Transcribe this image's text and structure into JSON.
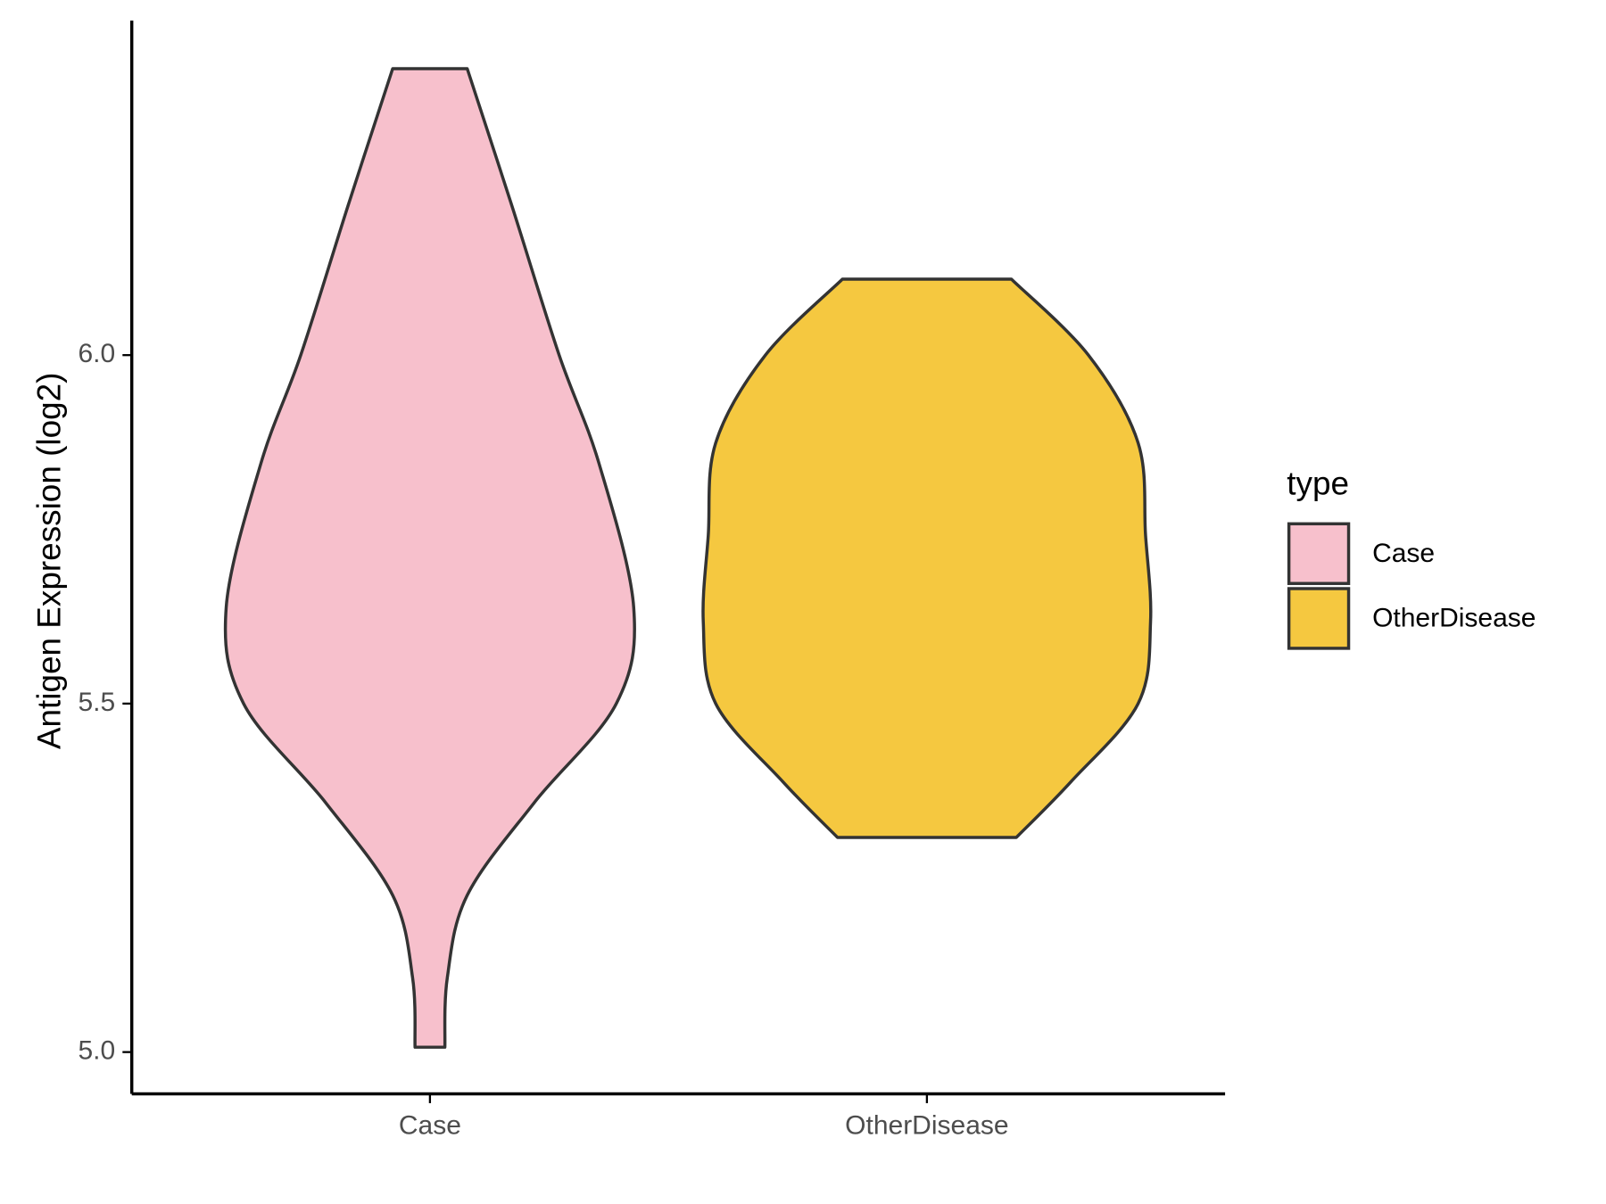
{
  "chart_data": {
    "type": "violin",
    "y_label": "Antigen Expression (log2)",
    "categories": [
      "Case",
      "OtherDisease"
    ],
    "legend_title": "type",
    "legend": "right",
    "series": [
      {
        "name": "Case",
        "color": "#f7c0cc",
        "y": [
          6.411,
          6.214,
          6.0,
          5.845,
          5.638,
          5.5,
          5.358,
          5.225,
          5.107,
          5.007
        ],
        "width": [
          0.15,
          0.33,
          0.52,
          0.68,
          0.82,
          0.75,
          0.42,
          0.15,
          0.07,
          0.06
        ]
      },
      {
        "name": "OtherDisease",
        "color": "#f5c840",
        "y": [
          6.109,
          6.0,
          5.874,
          5.741,
          5.617,
          5.5,
          5.388,
          5.308
        ],
        "width": [
          0.34,
          0.65,
          0.85,
          0.88,
          0.9,
          0.85,
          0.58,
          0.36
        ]
      }
    ],
    "ylim": [
      4.94,
      6.48
    ],
    "yticks": [
      {
        "value": 5,
        "label": "5.0"
      },
      5.5,
      {
        "value": 6,
        "label": "6.0"
      }
    ]
  }
}
